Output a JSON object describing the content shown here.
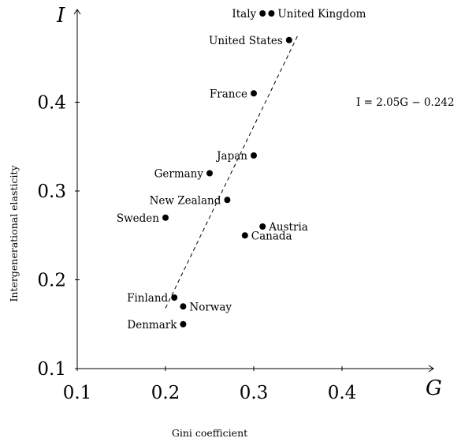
{
  "chart_data": {
    "type": "scatter",
    "x_symbol": "G",
    "y_symbol": "I",
    "xlabel": "Gini coefficient",
    "ylabel": "Intergenerational elasticity",
    "xlim": [
      0.1,
      0.5
    ],
    "ylim": [
      0.1,
      0.5
    ],
    "xticks": [
      "0.1",
      "0.2",
      "0.3",
      "0.4"
    ],
    "yticks": [
      "0.1",
      "0.2",
      "0.3",
      "0.4"
    ],
    "grid": false,
    "points": [
      {
        "label": "Italy",
        "x": 0.31,
        "y": 0.5
      },
      {
        "label": "United Kingdom",
        "x": 0.32,
        "y": 0.5
      },
      {
        "label": "United States",
        "x": 0.34,
        "y": 0.47
      },
      {
        "label": "France",
        "x": 0.3,
        "y": 0.41
      },
      {
        "label": "Japan",
        "x": 0.3,
        "y": 0.34
      },
      {
        "label": "Germany",
        "x": 0.25,
        "y": 0.32
      },
      {
        "label": "New Zealand",
        "x": 0.27,
        "y": 0.29
      },
      {
        "label": "Sweden",
        "x": 0.2,
        "y": 0.27
      },
      {
        "label": "Austria",
        "x": 0.31,
        "y": 0.26
      },
      {
        "label": "Canada",
        "x": 0.29,
        "y": 0.25
      },
      {
        "label": "Finland",
        "x": 0.21,
        "y": 0.18
      },
      {
        "label": "Norway",
        "x": 0.22,
        "y": 0.17
      },
      {
        "label": "Denmark",
        "x": 0.22,
        "y": 0.15
      }
    ],
    "fit_line": {
      "equation": "I = 2.05G − 0.242",
      "slope": 2.05,
      "intercept": -0.242,
      "x_range": [
        0.2,
        0.35
      ],
      "style": "dashed"
    }
  }
}
